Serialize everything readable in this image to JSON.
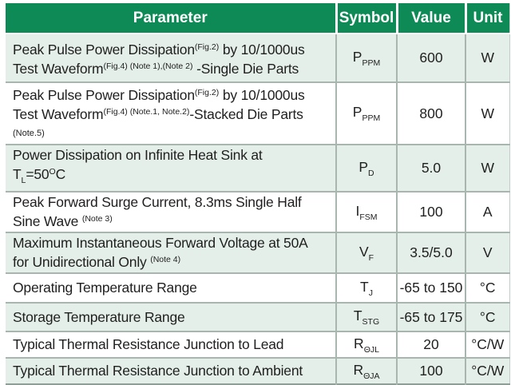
{
  "colors": {
    "header_bg": "#0e8a56",
    "header_text": "#ffffff",
    "row_shade": "#e5efe9",
    "row_plain": "#ffffff",
    "grid_line": "#a8b6af",
    "outer_line": "#8f9e97",
    "text": "#1f1f1f"
  },
  "table": {
    "headers": [
      "Parameter",
      "Symbol",
      "Value",
      "Unit"
    ],
    "rows": [
      {
        "parameter": [
          {
            "t": "Peak Pulse Power Dissipation"
          },
          {
            "t": "(Fig.2)",
            "s": "sup"
          },
          {
            "t": " by 10/1000us"
          },
          {
            "br": true
          },
          {
            "t": "Test Waveform"
          },
          {
            "t": "(Fig.4)",
            "s": "sup"
          },
          {
            "t": " ",
            "s": "sup"
          },
          {
            "t": "(Note 1),(Note 2)",
            "s": "sup"
          },
          {
            "t": " -Single Die Parts"
          }
        ],
        "symbol": [
          {
            "t": "P"
          },
          {
            "t": "PPM",
            "s": "sub"
          }
        ],
        "value": "600",
        "unit": "W",
        "shaded": true
      },
      {
        "parameter": [
          {
            "t": "Peak Pulse Power Dissipation"
          },
          {
            "t": "(Fig.2)",
            "s": "sup"
          },
          {
            "t": " by 10/1000us"
          },
          {
            "br": true
          },
          {
            "t": "Test Waveform"
          },
          {
            "t": "(Fig.4)",
            "s": "sup"
          },
          {
            "t": " ",
            "s": "sup"
          },
          {
            "t": "(Note.1, Note.2)",
            "s": "sup"
          },
          {
            "t": "-Stacked Die Parts"
          },
          {
            "br": true
          },
          {
            "t": "(Note.5)",
            "s": "small"
          }
        ],
        "symbol": [
          {
            "t": "P"
          },
          {
            "t": "PPM",
            "s": "sub"
          }
        ],
        "value": "800",
        "unit": "W",
        "shaded": false
      },
      {
        "parameter": [
          {
            "t": "Power Dissipation on Infinite Heat Sink at"
          },
          {
            "br": true
          },
          {
            "t": "T"
          },
          {
            "t": "L",
            "s": "sub"
          },
          {
            "t": "=50"
          },
          {
            "t": "O",
            "s": "sup"
          },
          {
            "t": "C"
          }
        ],
        "symbol": [
          {
            "t": "P"
          },
          {
            "t": "D",
            "s": "sub"
          }
        ],
        "value": "5.0",
        "unit": "W",
        "shaded": true
      },
      {
        "parameter": [
          {
            "t": "Peak Forward Surge Current, 8.3ms Single Half"
          },
          {
            "br": true
          },
          {
            "t": "Sine Wave "
          },
          {
            "t": "(Note 3)",
            "s": "sup"
          }
        ],
        "symbol": [
          {
            "t": "I"
          },
          {
            "t": "FSM",
            "s": "sub"
          }
        ],
        "value": "100",
        "unit": "A",
        "shaded": false
      },
      {
        "parameter": [
          {
            "t": "Maximum Instantaneous Forward Voltage at 50A"
          },
          {
            "br": true
          },
          {
            "t": "for Unidirectional Only "
          },
          {
            "t": "(Note 4)",
            "s": "sup"
          }
        ],
        "symbol": [
          {
            "t": "V"
          },
          {
            "t": "F",
            "s": "sub"
          }
        ],
        "value": "3.5/5.0",
        "unit": "V",
        "shaded": true
      },
      {
        "parameter": [
          {
            "t": "Operating Temperature Range"
          }
        ],
        "symbol": [
          {
            "t": "T"
          },
          {
            "t": "J",
            "s": "sub"
          }
        ],
        "value": "-65 to 150",
        "unit": "°C",
        "shaded": false
      },
      {
        "parameter": [
          {
            "t": "Storage Temperature Range"
          }
        ],
        "symbol": [
          {
            "t": "T"
          },
          {
            "t": "STG",
            "s": "sub"
          }
        ],
        "value": "-65 to 175",
        "unit": "°C",
        "shaded": true
      },
      {
        "parameter": [
          {
            "t": "Typical Thermal Resistance Junction to Lead"
          }
        ],
        "symbol": [
          {
            "t": "R"
          },
          {
            "t": "ΘJL",
            "s": "sub"
          }
        ],
        "value": "20",
        "unit": "°C/W",
        "shaded": false
      },
      {
        "parameter": [
          {
            "t": "Typical Thermal Resistance Junction to Ambient"
          }
        ],
        "symbol": [
          {
            "t": "R"
          },
          {
            "t": "ΘJA",
            "s": "sub"
          }
        ],
        "value": "100",
        "unit": "°C/W",
        "shaded": true
      }
    ]
  }
}
